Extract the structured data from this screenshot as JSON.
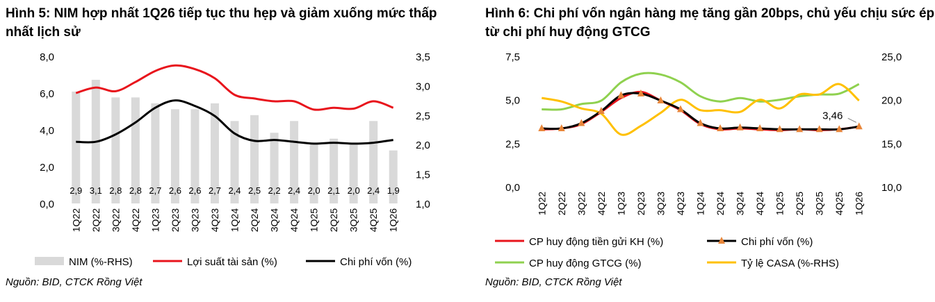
{
  "charts": [
    {
      "title": "Hình 5: NIM hợp nhất 1Q26 tiếp tục thu hẹp và giảm xuống mức thấp nhất lịch sử",
      "source": "Nguồn: BID, CTCK Rồng Việt",
      "chart_data": {
        "type": "bar+line",
        "categories": [
          "1Q22",
          "2Q22",
          "3Q22",
          "4Q22",
          "1Q23",
          "2Q23",
          "3Q23",
          "4Q23",
          "1Q24",
          "2Q24",
          "3Q24",
          "4Q24",
          "1Q25",
          "2Q25",
          "3Q25",
          "4Q25",
          "1Q26"
        ],
        "y_left": {
          "min": 0,
          "max": 8,
          "ticks": [
            "0,0",
            "2,0",
            "4,0",
            "6,0",
            "8,0"
          ],
          "tick_values": [
            0,
            2,
            4,
            6,
            8
          ]
        },
        "y_right": {
          "min": 1.0,
          "max": 3.5,
          "ticks": [
            "1,0",
            "1,5",
            "2,0",
            "2,5",
            "3,0",
            "3,5"
          ],
          "tick_values": [
            1.0,
            1.5,
            2.0,
            2.5,
            3.0,
            3.5
          ]
        },
        "bar_series": {
          "name": "NIM (%-RHS)",
          "axis": "right",
          "color": "#d9d9d9",
          "values": [
            2.9,
            3.1,
            2.8,
            2.8,
            2.7,
            2.6,
            2.6,
            2.7,
            2.4,
            2.5,
            2.2,
            2.4,
            2.0,
            2.1,
            2.0,
            2.4,
            1.9
          ],
          "labels": [
            "2,9",
            "3,1",
            "2,8",
            "2,8",
            "2,7",
            "2,6",
            "2,6",
            "2,7",
            "2,4",
            "2,5",
            "2,2",
            "2,4",
            "2,0",
            "2,1",
            "2,0",
            "2,4",
            "1,9"
          ]
        },
        "line_series": [
          {
            "name": "Lợi suất tài sản (%)",
            "axis": "left",
            "color": "#e8141c",
            "values": [
              6.0,
              6.3,
              6.1,
              6.6,
              7.2,
              7.5,
              7.3,
              6.8,
              5.9,
              5.7,
              5.55,
              5.55,
              5.1,
              5.2,
              5.15,
              5.55,
              5.2
            ]
          },
          {
            "name": "Chi phí vốn (%)",
            "axis": "left",
            "color": "#000000",
            "values": [
              3.35,
              3.35,
              3.75,
              4.4,
              5.2,
              5.6,
              5.3,
              4.75,
              3.8,
              3.4,
              3.45,
              3.35,
              3.25,
              3.3,
              3.25,
              3.3,
              3.45
            ]
          }
        ],
        "legend_position": "bottom"
      }
    },
    {
      "title": "Hình 6: Chi phí vốn ngân hàng mẹ tăng gần 20bps, chủ yếu chịu sức ép từ chi phí huy động GTCG",
      "source": "Nguồn: BID, CTCK Rồng Việt",
      "chart_data": {
        "type": "line",
        "categories": [
          "1Q22",
          "2Q22",
          "3Q22",
          "4Q22",
          "1Q23",
          "2Q23",
          "3Q23",
          "4Q23",
          "1Q24",
          "2Q24",
          "3Q24",
          "4Q24",
          "1Q25",
          "2Q25",
          "3Q25",
          "4Q25",
          "1Q26"
        ],
        "y_left": {
          "min": 0,
          "max": 7.5,
          "ticks": [
            "0,0",
            "2,5",
            "5,0",
            "7,5"
          ],
          "tick_values": [
            0,
            2.5,
            5.0,
            7.5
          ]
        },
        "y_right": {
          "min": 10,
          "max": 25,
          "ticks": [
            "10,0",
            "15,0",
            "20,0",
            "25,0"
          ],
          "tick_values": [
            10,
            15,
            20,
            25
          ]
        },
        "annotation": "3,46",
        "series": [
          {
            "name": "CP huy động tiền gửi KH (%)",
            "axis": "left",
            "color": "#e8141c",
            "values": [
              3.3,
              3.35,
              3.6,
              4.3,
              5.1,
              5.45,
              4.95,
              4.4,
              3.6,
              3.3,
              3.35,
              3.3,
              3.25,
              3.3,
              3.25,
              3.3,
              3.45
            ]
          },
          {
            "name": "Chi phí vốn (%)",
            "axis": "left",
            "color": "#000000",
            "marker": "triangle",
            "marker_color": "#e8863a",
            "values": [
              3.35,
              3.35,
              3.65,
              4.35,
              5.25,
              5.35,
              4.95,
              4.45,
              3.65,
              3.35,
              3.4,
              3.35,
              3.3,
              3.3,
              3.3,
              3.3,
              3.46
            ]
          },
          {
            "name": "CP huy động GTCG (%)",
            "axis": "left",
            "color": "#8fd14f",
            "values": [
              4.45,
              4.45,
              4.75,
              4.95,
              6.0,
              6.5,
              6.45,
              6.0,
              5.2,
              4.9,
              5.1,
              4.9,
              5.0,
              5.2,
              5.3,
              5.35,
              5.9
            ]
          },
          {
            "name": "Tỷ lệ CASA (%-RHS)",
            "axis": "right",
            "color": "#ffc000",
            "values": [
              20.2,
              19.8,
              19.0,
              18.4,
              16.0,
              17.0,
              18.5,
              20.0,
              18.8,
              18.8,
              18.6,
              20.0,
              19.0,
              20.6,
              20.6,
              21.8,
              19.9
            ]
          }
        ],
        "legend_position": "bottom"
      }
    }
  ]
}
